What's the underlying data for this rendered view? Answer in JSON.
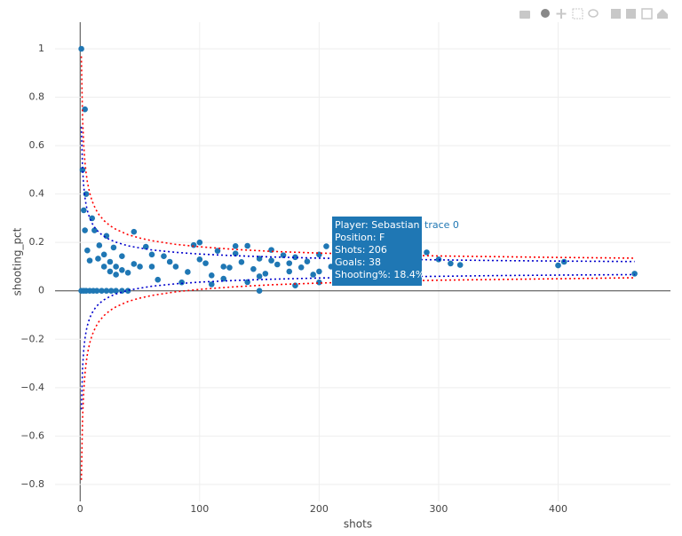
{
  "chart_data": {
    "type": "scatter",
    "xlabel": "shots",
    "ylabel": "shooting_pct",
    "xlim": [
      -21,
      494
    ],
    "ylim": [
      -0.87,
      1.11
    ],
    "xticks": [
      0,
      100,
      200,
      300,
      400
    ],
    "yticks": [
      {
        "value": -0.8,
        "label": "−0.8"
      },
      {
        "value": -0.6,
        "label": "−0.6"
      },
      {
        "value": -0.4,
        "label": "−0.4"
      },
      {
        "value": -0.2,
        "label": "−0.2"
      },
      0,
      0.2,
      0.4,
      0.6,
      0.8,
      1
    ],
    "grid": true,
    "series": [
      {
        "name": "trace 0",
        "mode": "markers",
        "color": "#1f77b4",
        "x": [
          1,
          4,
          2,
          3,
          5,
          4,
          6,
          10,
          8,
          15,
          20,
          25,
          30,
          12,
          16,
          20,
          25,
          30,
          35,
          40,
          22,
          28,
          35,
          45,
          50,
          45,
          60,
          55,
          70,
          75,
          80,
          90,
          95,
          100,
          105,
          110,
          115,
          120,
          125,
          130,
          135,
          140,
          145,
          150,
          150,
          155,
          160,
          165,
          170,
          175,
          180,
          185,
          190,
          195,
          200,
          206,
          210,
          215,
          220,
          225,
          230,
          240,
          245,
          250,
          260,
          270,
          280,
          290,
          300,
          310,
          318,
          400,
          405,
          464,
          65,
          85,
          110,
          140,
          180,
          200,
          250,
          100,
          130,
          160,
          60,
          120,
          230,
          270,
          150,
          200,
          175,
          1,
          3,
          5,
          8,
          11,
          14,
          18,
          22,
          26,
          30,
          35,
          40
        ],
        "values": [
          1,
          0.75,
          0.5,
          0.333,
          0.4,
          0.25,
          0.167,
          0.3,
          0.125,
          0.133,
          0.1,
          0.08,
          0.067,
          0.25,
          0.188,
          0.15,
          0.12,
          0.1,
          0.086,
          0.075,
          0.227,
          0.179,
          0.143,
          0.111,
          0.1,
          0.244,
          0.15,
          0.182,
          0.143,
          0.12,
          0.1,
          0.078,
          0.189,
          0.13,
          0.114,
          0.064,
          0.165,
          0.1,
          0.096,
          0.154,
          0.119,
          0.186,
          0.09,
          0,
          0.133,
          0.071,
          0.125,
          0.109,
          0.147,
          0.08,
          0.139,
          0.097,
          0.121,
          0.067,
          0.15,
          0.184,
          0.1,
          0.128,
          0.073,
          0.138,
          0.113,
          0.15,
          0.094,
          0.12,
          0.142,
          0.085,
          0.125,
          0.159,
          0.13,
          0.113,
          0.107,
          0.105,
          0.12,
          0.071,
          0.046,
          0.035,
          0.027,
          0.036,
          0.022,
          0.035,
          0.044,
          0.2,
          0.185,
          0.169,
          0.1,
          0.05,
          0.178,
          0.185,
          0.06,
          0.08,
          0.114,
          0,
          0,
          0,
          0,
          0,
          0,
          0,
          0,
          0,
          0,
          0,
          0
        ]
      },
      {
        "mode": "lines",
        "color": "#ff0000",
        "x": [
          1,
          2,
          3,
          4,
          5,
          6,
          8,
          10,
          13,
          16,
          20,
          25,
          30,
          40,
          50,
          60,
          80,
          100,
          130,
          160,
          200,
          250,
          300,
          350,
          400,
          464
        ],
        "values": [
          0.969,
          0.713,
          0.6,
          0.532,
          0.486,
          0.451,
          0.404,
          0.371,
          0.337,
          0.313,
          0.29,
          0.269,
          0.254,
          0.232,
          0.218,
          0.207,
          0.192,
          0.182,
          0.171,
          0.163,
          0.156,
          0.15,
          0.144,
          0.141,
          0.138,
          0.135
        ]
      },
      {
        "mode": "lines",
        "color": "#ff0000",
        "x": [
          1,
          2,
          3,
          4,
          5,
          6,
          8,
          10,
          13,
          16,
          20,
          25,
          30,
          40,
          50,
          60,
          80,
          100,
          130,
          160,
          200,
          250,
          300,
          350,
          400,
          464
        ],
        "values": [
          -0.781,
          -0.525,
          -0.412,
          -0.344,
          -0.298,
          -0.263,
          -0.216,
          -0.183,
          -0.149,
          -0.125,
          -0.102,
          -0.081,
          -0.066,
          -0.044,
          -0.03,
          -0.019,
          -0.004,
          0.006,
          0.017,
          0.025,
          0.032,
          0.039,
          0.044,
          0.047,
          0.05,
          0.054
        ]
      },
      {
        "mode": "lines",
        "color": "#0000cc",
        "x": [
          1,
          2,
          3,
          4,
          5,
          6,
          8,
          10,
          13,
          16,
          20,
          25,
          30,
          40,
          50,
          60,
          80,
          100,
          130,
          160,
          200,
          250,
          300,
          350,
          400,
          464
        ],
        "values": [
          0.678,
          0.507,
          0.431,
          0.386,
          0.355,
          0.332,
          0.3,
          0.279,
          0.256,
          0.24,
          0.225,
          0.211,
          0.201,
          0.186,
          0.177,
          0.169,
          0.159,
          0.152,
          0.145,
          0.14,
          0.135,
          0.131,
          0.128,
          0.125,
          0.123,
          0.121
        ]
      },
      {
        "mode": "lines",
        "color": "#0000cc",
        "x": [
          1,
          2,
          3,
          4,
          5,
          6,
          8,
          10,
          13,
          16,
          20,
          25,
          30,
          40,
          50,
          60,
          80,
          100,
          130,
          160,
          200,
          250,
          300,
          350,
          400,
          464
        ],
        "values": [
          -0.49,
          -0.319,
          -0.243,
          -0.198,
          -0.167,
          -0.144,
          -0.112,
          -0.091,
          -0.068,
          -0.052,
          -0.037,
          -0.023,
          -0.013,
          0.002,
          0.011,
          0.019,
          0.029,
          0.036,
          0.043,
          0.048,
          0.053,
          0.057,
          0.06,
          0.063,
          0.065,
          0.067
        ]
      }
    ],
    "hover": {
      "lines": [
        "Player: Sebastian Aho",
        "Position: F",
        "Shots: 206",
        "Goals: 38",
        "Shooting%: 18.4%"
      ],
      "trace": "trace 0"
    }
  }
}
